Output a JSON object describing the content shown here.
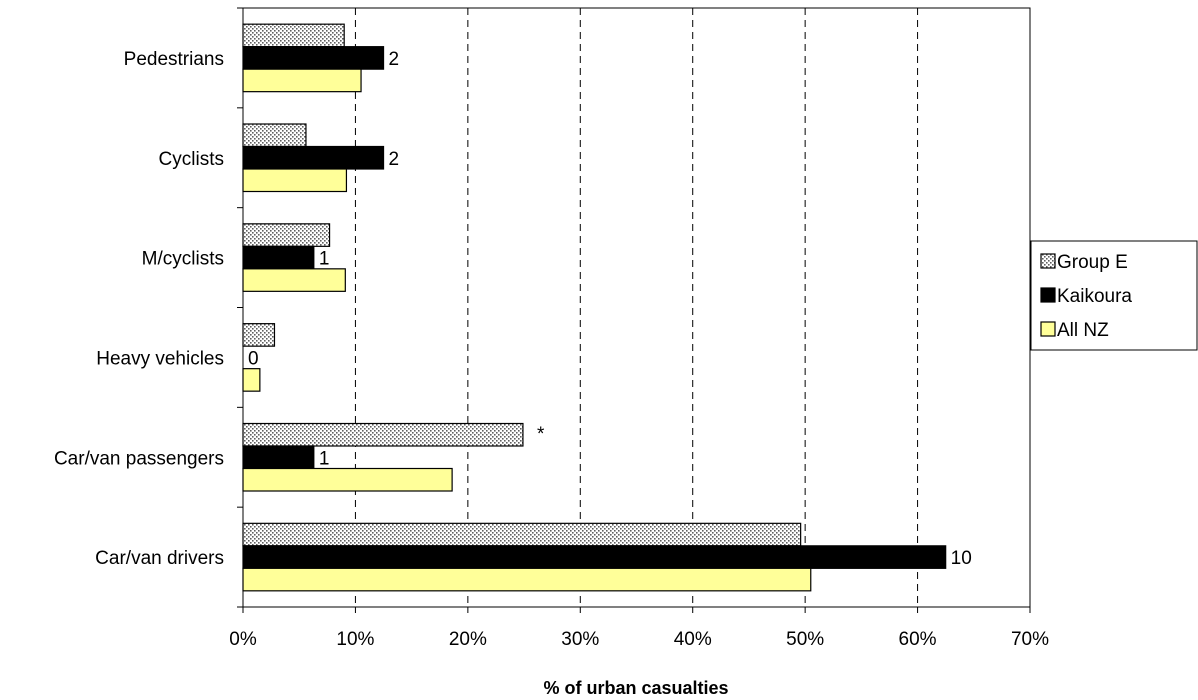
{
  "chart_data": {
    "type": "bar",
    "orientation": "horizontal",
    "categories": [
      "Pedestrians",
      "Cyclists",
      "M/cyclists",
      "Heavy vehicles",
      "Car/van passengers",
      "Car/van drivers"
    ],
    "series": [
      {
        "name": "Group E",
        "values": [
          9.0,
          5.6,
          7.7,
          2.8,
          24.9,
          49.6
        ],
        "color": "#d0d0d0",
        "pattern": "dotted"
      },
      {
        "name": "Kaikoura",
        "values": [
          12.5,
          12.5,
          6.3,
          0.0,
          6.3,
          62.5
        ],
        "color": "#000000"
      },
      {
        "name": "All NZ",
        "values": [
          10.5,
          9.2,
          9.1,
          1.5,
          18.6,
          50.5
        ],
        "color": "#ffff99"
      }
    ],
    "data_labels": [
      "2",
      "2",
      "1",
      "0",
      "1",
      "10"
    ],
    "annotations": [
      {
        "category": "Car/van passengers",
        "text": "*"
      }
    ],
    "xlabel": "% of urban casualties",
    "xlim": [
      0,
      70
    ],
    "xticks": [
      "0%",
      "10%",
      "20%",
      "30%",
      "40%",
      "50%",
      "60%",
      "70%"
    ],
    "grid": "vertical dashed",
    "legend_position": "right"
  }
}
